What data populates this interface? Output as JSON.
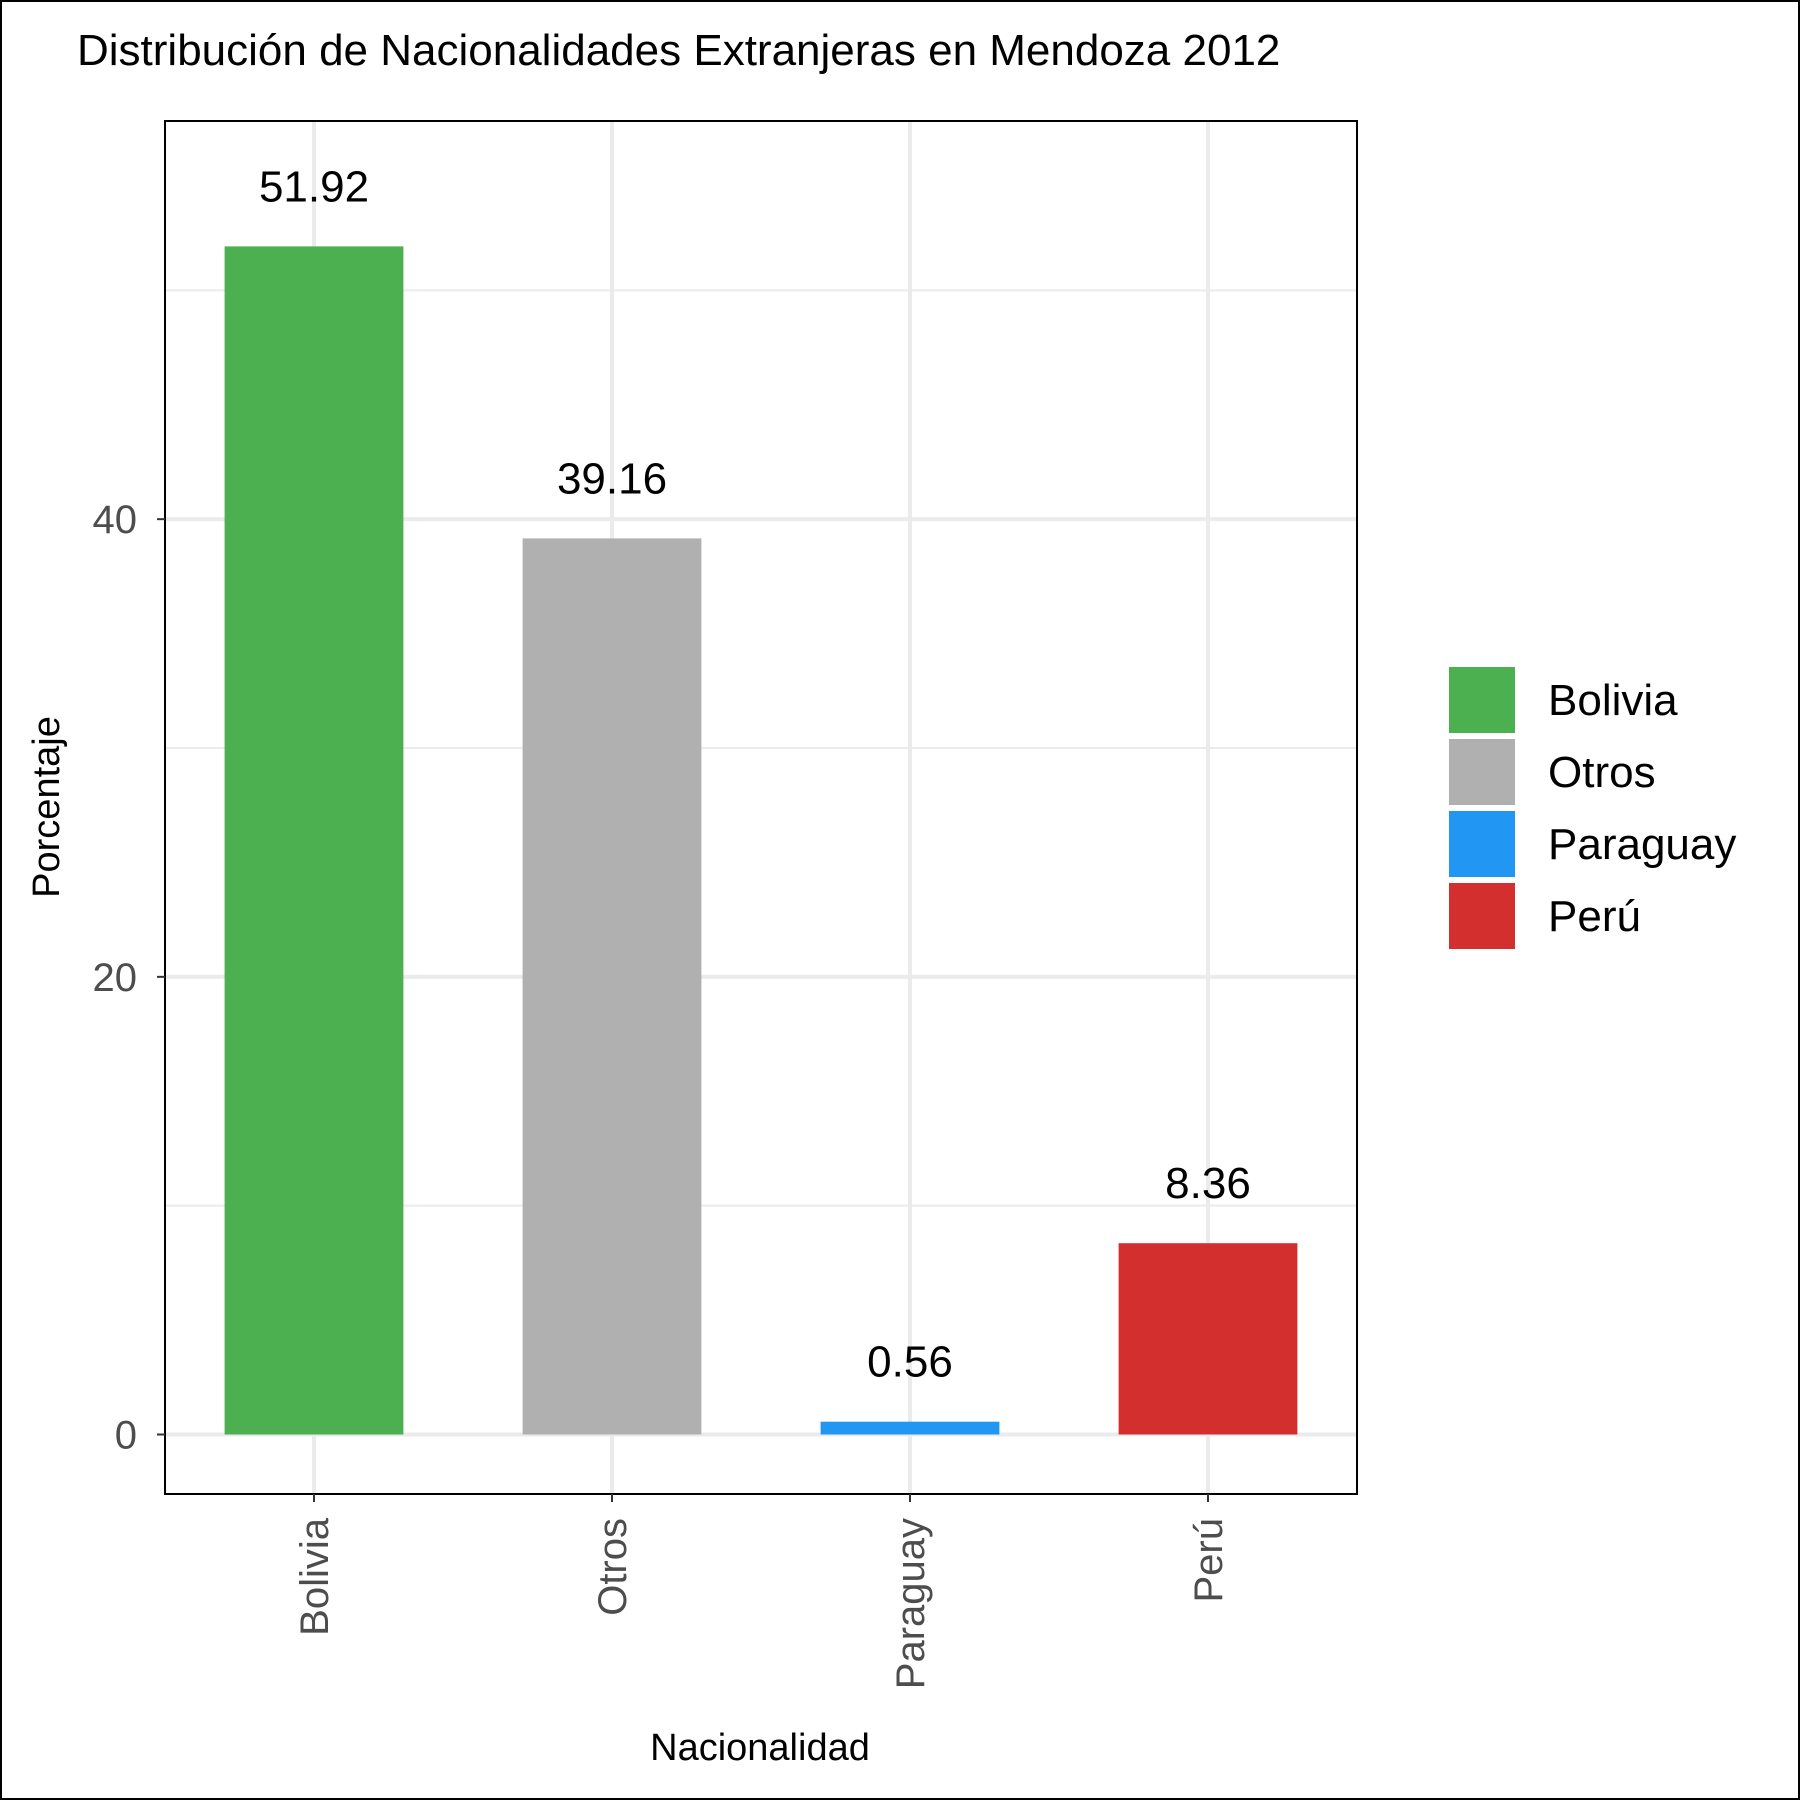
{
  "chart_data": {
    "type": "bar",
    "title": "Distribución de Nacionalidades Extranjeras en Mendoza 2012",
    "xlabel": "Nacionalidad",
    "ylabel": "Porcentaje",
    "categories": [
      "Bolivia",
      "Otros",
      "Paraguay",
      "Perú"
    ],
    "values": [
      51.92,
      39.16,
      0.56,
      8.36
    ],
    "value_labels": [
      "51.92",
      "39.16",
      "0.56",
      "8.36"
    ],
    "colors": [
      "#4caf50",
      "#b0b0b0",
      "#2196f3",
      "#d32f2f"
    ],
    "ylim": [
      -2.6,
      57.4
    ],
    "yticks": [
      0,
      20,
      40
    ],
    "ytick_labels": [
      "0",
      "20",
      "40"
    ],
    "grid": true,
    "legend": {
      "position": "right",
      "entries": [
        "Bolivia",
        "Otros",
        "Paraguay",
        "Perú"
      ]
    }
  }
}
